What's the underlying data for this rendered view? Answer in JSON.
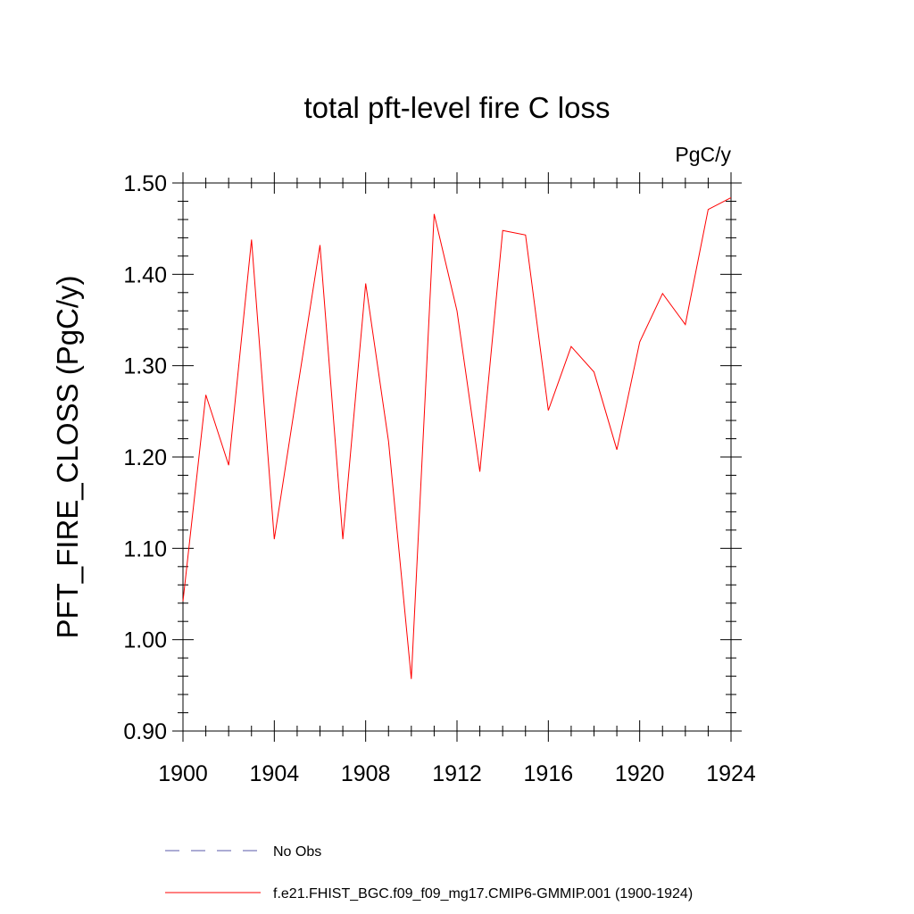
{
  "chart_data": {
    "type": "line",
    "title": "total pft-level fire C loss",
    "units_label": "PgC/y",
    "ylabel": "PFT_FIRE_CLOSS  (PgC/y)",
    "xlabel": "",
    "xlim": [
      1900,
      1924
    ],
    "ylim": [
      0.9,
      1.5
    ],
    "x_ticks": [
      1900,
      1904,
      1908,
      1912,
      1916,
      1920,
      1924
    ],
    "y_ticks": [
      0.9,
      1.0,
      1.1,
      1.2,
      1.3,
      1.4,
      1.5
    ],
    "y_tick_labels": [
      "0.90",
      "1.00",
      "1.10",
      "1.20",
      "1.30",
      "1.40",
      "1.50"
    ],
    "x": [
      1900,
      1901,
      1902,
      1903,
      1904,
      1905,
      1906,
      1907,
      1908,
      1909,
      1910,
      1911,
      1912,
      1913,
      1914,
      1915,
      1916,
      1917,
      1918,
      1919,
      1920,
      1921,
      1922,
      1923,
      1924
    ],
    "series": [
      {
        "name": "f.e21.FHIST_BGC.f09_f09_mg17.CMIP6-GMMIP.001 (1900-1924)",
        "color": "#ff0000",
        "dash": "solid",
        "values": [
          1.042,
          1.268,
          1.191,
          1.438,
          1.11,
          1.272,
          1.432,
          1.11,
          1.39,
          1.217,
          0.957,
          1.466,
          1.36,
          1.184,
          1.448,
          1.443,
          1.251,
          1.321,
          1.293,
          1.208,
          1.326,
          1.379,
          1.345,
          1.471,
          1.484
        ]
      }
    ],
    "legend": [
      {
        "label": "No Obs",
        "color": "#5a5aa8",
        "dash": "dashed"
      },
      {
        "label": "f.e21.FHIST_BGC.f09_f09_mg17.CMIP6-GMMIP.001 (1900-1924)",
        "color": "#ff0000",
        "dash": "solid"
      }
    ],
    "legend_position": "bottom",
    "grid": false
  }
}
